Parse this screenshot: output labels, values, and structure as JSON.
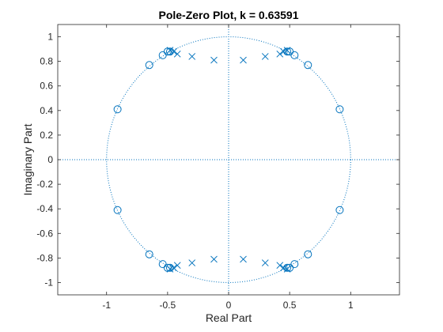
{
  "chart_data": {
    "type": "scatter",
    "title": "Pole-Zero Plot, k = 0.63591",
    "xlabel": "Real Part",
    "ylabel": "Imaginary Part",
    "xlim": [
      -1.4,
      1.4
    ],
    "ylim": [
      -1.1,
      1.1
    ],
    "xticks": [
      -1,
      -0.5,
      0,
      0.5,
      1
    ],
    "xtick_labels": [
      "-1",
      "-0.5",
      "0",
      "0.5",
      "1"
    ],
    "yticks": [
      -1,
      -0.8,
      -0.6,
      -0.4,
      -0.2,
      0,
      0.2,
      0.4,
      0.6,
      0.8,
      1
    ],
    "ytick_labels": [
      "-1",
      "-0.8",
      "-0.6",
      "-0.4",
      "-0.2",
      "0",
      "0.2",
      "0.4",
      "0.6",
      "0.8",
      "1"
    ],
    "grid": false,
    "unit_circle": true,
    "color": "#0072bd",
    "zeros": [
      {
        "x": 0.91,
        "y": 0.41
      },
      {
        "x": 0.65,
        "y": 0.77
      },
      {
        "x": 0.54,
        "y": 0.85
      },
      {
        "x": 0.5,
        "y": 0.88
      },
      {
        "x": 0.48,
        "y": 0.88
      },
      {
        "x": -0.48,
        "y": 0.88
      },
      {
        "x": -0.5,
        "y": 0.88
      },
      {
        "x": -0.54,
        "y": 0.85
      },
      {
        "x": -0.65,
        "y": 0.77
      },
      {
        "x": -0.91,
        "y": 0.41
      },
      {
        "x": 0.91,
        "y": -0.41
      },
      {
        "x": 0.65,
        "y": -0.77
      },
      {
        "x": 0.54,
        "y": -0.85
      },
      {
        "x": 0.5,
        "y": -0.88
      },
      {
        "x": 0.48,
        "y": -0.88
      },
      {
        "x": -0.48,
        "y": -0.88
      },
      {
        "x": -0.5,
        "y": -0.88
      },
      {
        "x": -0.54,
        "y": -0.85
      },
      {
        "x": -0.65,
        "y": -0.77
      },
      {
        "x": -0.91,
        "y": -0.41
      }
    ],
    "poles": [
      {
        "x": 0.12,
        "y": 0.81
      },
      {
        "x": 0.3,
        "y": 0.84
      },
      {
        "x": 0.42,
        "y": 0.86
      },
      {
        "x": 0.45,
        "y": 0.88
      },
      {
        "x": 0.48,
        "y": 0.89
      },
      {
        "x": -0.12,
        "y": 0.81
      },
      {
        "x": -0.3,
        "y": 0.84
      },
      {
        "x": -0.42,
        "y": 0.86
      },
      {
        "x": -0.45,
        "y": 0.88
      },
      {
        "x": -0.48,
        "y": 0.89
      },
      {
        "x": 0.12,
        "y": -0.81
      },
      {
        "x": 0.3,
        "y": -0.84
      },
      {
        "x": 0.42,
        "y": -0.86
      },
      {
        "x": 0.45,
        "y": -0.88
      },
      {
        "x": 0.48,
        "y": -0.89
      },
      {
        "x": -0.12,
        "y": -0.81
      },
      {
        "x": -0.3,
        "y": -0.84
      },
      {
        "x": -0.42,
        "y": -0.86
      },
      {
        "x": -0.45,
        "y": -0.88
      },
      {
        "x": -0.48,
        "y": -0.89
      }
    ]
  }
}
